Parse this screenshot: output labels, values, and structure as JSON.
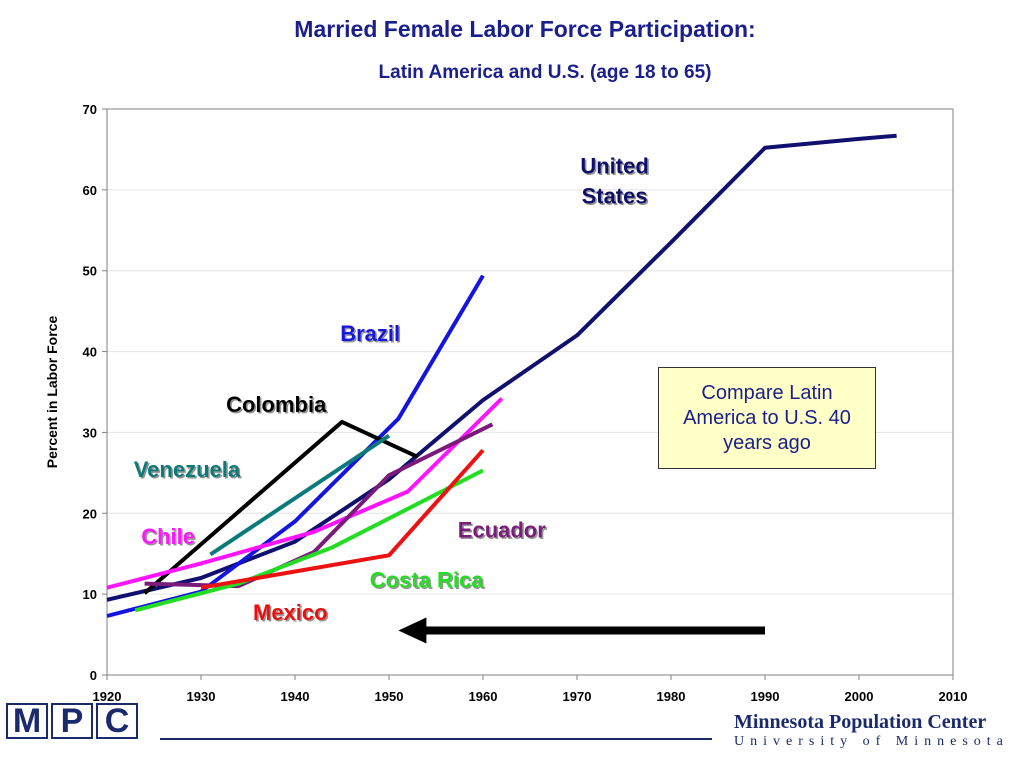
{
  "header": {
    "title": "Married Female Labor Force Participation:",
    "subtitle": "Latin America and U.S.  (age 18 to 65)"
  },
  "callout": {
    "text": "Compare Latin America to U.S. 40 years ago"
  },
  "footer": {
    "logo_letters": [
      "M",
      "P",
      "C"
    ],
    "org_name": "Minnesota Population Center",
    "org_sub": "University of Minnesota"
  },
  "colors": {
    "title": "#1a1f8c",
    "footer": "#1a2a6c",
    "callout_bg": "#ffffc8"
  },
  "chart_data": {
    "type": "line",
    "title": "Married Female Labor Force Participation:",
    "subtitle": "Latin America and U.S.  (age 18 to 65)",
    "ylabel": "Percent in Labor Force",
    "xlabel": "",
    "xlim": [
      1920,
      2010
    ],
    "ylim": [
      0,
      70
    ],
    "xticks": [
      1920,
      1930,
      1940,
      1950,
      1960,
      1970,
      1980,
      1990,
      2000,
      2010
    ],
    "yticks": [
      0,
      10,
      20,
      30,
      40,
      50,
      60,
      70
    ],
    "grid": true,
    "series": [
      {
        "name": "United States",
        "label": [
          "United",
          "States"
        ],
        "color": "#10106e",
        "label_at": [
          1974,
          62
        ],
        "label_align": "middle",
        "points": [
          [
            1920,
            9.3
          ],
          [
            1930,
            12
          ],
          [
            1940,
            16.5
          ],
          [
            1950,
            24.2
          ],
          [
            1960,
            34
          ],
          [
            1970,
            42
          ],
          [
            1980,
            53.5
          ],
          [
            1990,
            65.2
          ],
          [
            2000,
            66.3
          ],
          [
            2004,
            66.7
          ]
        ]
      },
      {
        "name": "Brazil",
        "label": [
          "Brazil"
        ],
        "color": "#1414e0",
        "label_at": [
          1948,
          41.3
        ],
        "label_align": "middle",
        "points": [
          [
            1920,
            7.3
          ],
          [
            1930,
            10.3
          ],
          [
            1940,
            19
          ],
          [
            1951,
            31.7
          ],
          [
            1960,
            49.4
          ]
        ]
      },
      {
        "name": "Colombia",
        "label": [
          "Colombia"
        ],
        "color": "#000000",
        "label_at": [
          1938,
          32.5
        ],
        "label_align": "middle",
        "points": [
          [
            1924,
            10.1
          ],
          [
            1945,
            31.3
          ],
          [
            1953,
            27
          ]
        ]
      },
      {
        "name": "Venezuela",
        "label": [
          "Venezuela"
        ],
        "color": "#0a7a7a",
        "label_at": [
          1928.5,
          24.5
        ],
        "label_align": "middle",
        "points": [
          [
            1931,
            14.9
          ],
          [
            1950,
            29.6
          ]
        ]
      },
      {
        "name": "Chile",
        "label": [
          "Chile"
        ],
        "color": "#ff14ff",
        "label_at": [
          1926.5,
          16.2
        ],
        "label_align": "middle",
        "points": [
          [
            1920,
            10.8
          ],
          [
            1930,
            13.8
          ],
          [
            1942,
            17.7
          ],
          [
            1952,
            22.7
          ],
          [
            1962,
            34.2
          ]
        ]
      },
      {
        "name": "Ecuador",
        "label": [
          "Ecuador"
        ],
        "color": "#7a1a7a",
        "label_at": [
          1962,
          17
        ],
        "label_align": "middle",
        "points": [
          [
            1924,
            11.3
          ],
          [
            1934,
            11
          ],
          [
            1942,
            15.2
          ],
          [
            1950,
            24.7
          ],
          [
            1961,
            31
          ]
        ]
      },
      {
        "name": "Costa Rica",
        "label": [
          "Costa Rica"
        ],
        "color": "#22dd22",
        "label_at": [
          1954,
          10.8
        ],
        "label_align": "middle",
        "points": [
          [
            1923,
            8
          ],
          [
            1934,
            11.3
          ],
          [
            1944,
            15.8
          ],
          [
            1960,
            25.3
          ]
        ]
      },
      {
        "name": "Mexico",
        "label": [
          "Mexico"
        ],
        "color": "#ee1111",
        "label_at": [
          1939.5,
          6.8
        ],
        "label_align": "middle",
        "points": [
          [
            1930,
            10.8
          ],
          [
            1950,
            14.8
          ],
          [
            1960,
            27.8
          ]
        ]
      }
    ],
    "arrow": {
      "from": [
        1990,
        5.5
      ],
      "to": [
        1951,
        5.5
      ],
      "color": "#000000"
    }
  }
}
